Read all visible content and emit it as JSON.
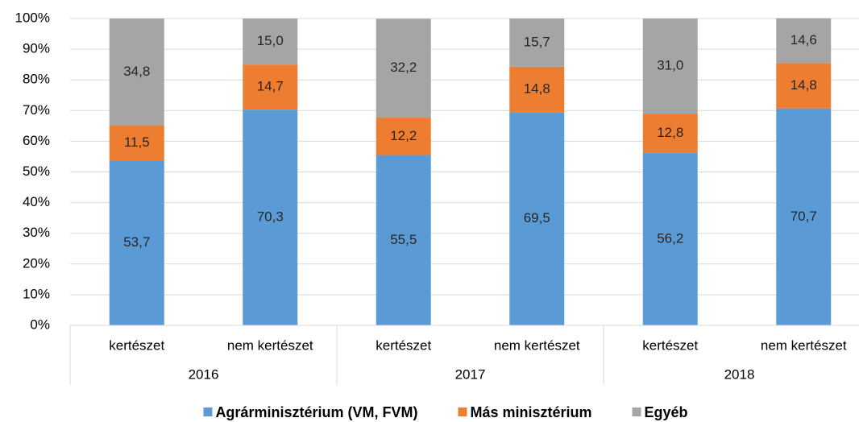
{
  "chart_data": {
    "type": "stacked_bar",
    "categories": [
      "kertészet",
      "nem kertészet",
      "kertészet",
      "nem kertészet",
      "kertészet",
      "nem kertészet"
    ],
    "category_groups": [
      "2016",
      "2017",
      "2018"
    ],
    "series": [
      {
        "name": "Agrárminisztérium (VM, FVM)",
        "color": "#5b9bd5",
        "values": [
          53.7,
          70.3,
          55.5,
          69.5,
          56.2,
          70.7
        ],
        "value_labels": [
          "53,7",
          "70,3",
          "55,5",
          "69,5",
          "56,2",
          "70,7"
        ]
      },
      {
        "name": "Más minisztérium",
        "color": "#ed7d31",
        "values": [
          11.5,
          14.7,
          12.2,
          14.8,
          12.8,
          14.8
        ],
        "value_labels": [
          "11,5",
          "14,7",
          "12,2",
          "14,8",
          "12,8",
          "14,8"
        ]
      },
      {
        "name": "Egyéb",
        "color": "#a5a5a5",
        "values": [
          34.8,
          15.0,
          32.2,
          15.7,
          31.0,
          14.6
        ],
        "value_labels": [
          "34,8",
          "15,0",
          "32,2",
          "15,7",
          "31,0",
          "14,6"
        ]
      }
    ],
    "ylim": [
      0,
      100
    ],
    "yticks": [
      {
        "value": 0,
        "label": "0%"
      },
      {
        "value": 10,
        "label": "10%"
      },
      {
        "value": 20,
        "label": "20%"
      },
      {
        "value": 30,
        "label": "30%"
      },
      {
        "value": 40,
        "label": "40%"
      },
      {
        "value": 50,
        "label": "50%"
      },
      {
        "value": 60,
        "label": "60%"
      },
      {
        "value": 70,
        "label": "70%"
      },
      {
        "value": 80,
        "label": "80%"
      },
      {
        "value": 90,
        "label": "90%"
      },
      {
        "value": 100,
        "label": "100%"
      }
    ],
    "grid": true,
    "legend": "bottom"
  }
}
